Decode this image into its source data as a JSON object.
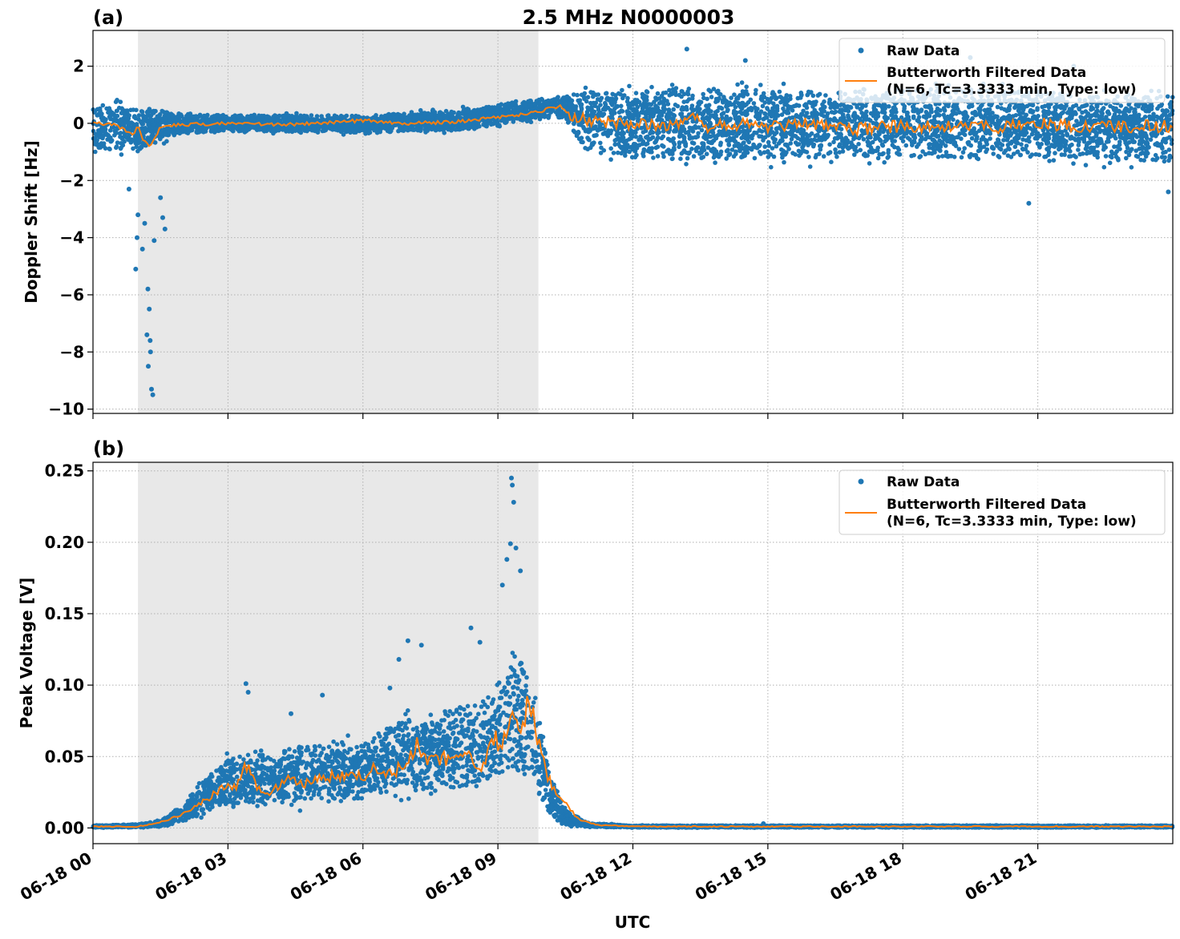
{
  "title": "2.5 MHz N0000003",
  "colors": {
    "raw": "#1f77b4",
    "filtered": "#ff7f0e",
    "shade": "#e8e8e8",
    "grid": "#b0b0b0"
  },
  "xaxis": {
    "label": "UTC",
    "range_hours": [
      0,
      24
    ],
    "tick_hours": [
      0,
      3,
      6,
      9,
      12,
      15,
      18,
      21
    ],
    "tick_labels": [
      "06-18 00",
      "06-18 03",
      "06-18 06",
      "06-18 09",
      "06-18 12",
      "06-18 15",
      "06-18 18",
      "06-18 21"
    ]
  },
  "legend": {
    "raw": "Raw Data",
    "filtered_line1": "Butterworth Filtered Data",
    "filtered_line2": "(N=6, Tc=3.3333 min, Type: low)"
  },
  "chart_data": [
    {
      "type": "scatter",
      "panel": "(a)",
      "title": "2.5 MHz N0000003",
      "xlabel": "UTC",
      "ylabel": "Doppler Shift [Hz]",
      "ylim": [
        -10.15,
        3.25
      ],
      "yticks": [
        2,
        0,
        -2,
        -4,
        -6,
        -8,
        -10
      ],
      "ytick_labels": [
        "2",
        "0",
        "−2",
        "−4",
        "−6",
        "−8",
        "−10"
      ],
      "grid": true,
      "legend_position": "top-right",
      "shaded_region_hours": [
        1.0,
        9.9
      ],
      "series": [
        {
          "name": "Raw Data",
          "style": "points",
          "envelope": {
            "x": [
              0,
              1,
              2,
              3,
              4,
              5,
              6,
              7,
              8,
              9,
              10,
              10.5,
              11,
              12,
              13,
              14,
              15,
              16,
              17,
              18,
              19,
              20,
              21,
              22,
              23,
              24
            ],
            "upper": [
              1.0,
              0.8,
              0.5,
              0.4,
              0.4,
              0.4,
              0.4,
              0.5,
              0.6,
              0.8,
              1.0,
              1.1,
              1.6,
              1.7,
              1.8,
              1.7,
              1.6,
              1.6,
              1.6,
              1.7,
              1.7,
              1.7,
              1.6,
              1.5,
              1.5,
              1.5
            ],
            "lower": [
              -1.2,
              -1.3,
              -0.5,
              -0.4,
              -0.4,
              -0.4,
              -0.5,
              -0.4,
              -0.4,
              -0.2,
              0.1,
              0.0,
              -1.5,
              -1.7,
              -1.8,
              -1.8,
              -1.7,
              -1.7,
              -1.7,
              -1.7,
              -1.7,
              -1.7,
              -1.7,
              -1.7,
              -1.8,
              -1.8
            ]
          },
          "outliers": [
            {
              "x": 0.95,
              "y": -5.1
            },
            {
              "x": 0.98,
              "y": -4.0
            },
            {
              "x": 1.0,
              "y": -3.2
            },
            {
              "x": 1.1,
              "y": -4.4
            },
            {
              "x": 1.15,
              "y": -3.5
            },
            {
              "x": 1.22,
              "y": -5.8
            },
            {
              "x": 1.25,
              "y": -6.5
            },
            {
              "x": 1.2,
              "y": -7.4
            },
            {
              "x": 1.28,
              "y": -8.0
            },
            {
              "x": 1.23,
              "y": -8.5
            },
            {
              "x": 1.3,
              "y": -9.3
            },
            {
              "x": 1.33,
              "y": -9.5
            },
            {
              "x": 1.27,
              "y": -7.6
            },
            {
              "x": 1.36,
              "y": -4.1
            },
            {
              "x": 1.5,
              "y": -2.6
            },
            {
              "x": 1.55,
              "y": -3.3
            },
            {
              "x": 1.6,
              "y": -3.7
            },
            {
              "x": 0.8,
              "y": -2.3
            },
            {
              "x": 13.2,
              "y": 2.6
            },
            {
              "x": 14.5,
              "y": 2.2
            },
            {
              "x": 19.5,
              "y": 2.3
            },
            {
              "x": 21.8,
              "y": 2.0
            },
            {
              "x": 20.8,
              "y": -2.8
            },
            {
              "x": 23.9,
              "y": -2.4
            }
          ]
        },
        {
          "name": "Butterworth Filtered Data",
          "style": "line",
          "x": [
            0,
            0.5,
            0.9,
            1.0,
            1.1,
            1.3,
            1.5,
            2,
            3,
            4,
            5,
            6,
            7,
            8,
            9,
            9.5,
            10,
            10.4,
            10.6,
            11,
            12,
            13,
            13.5,
            13.7,
            14,
            15,
            16,
            17,
            18,
            19,
            20,
            21,
            22,
            23,
            24
          ],
          "y": [
            0.0,
            -0.05,
            -0.4,
            -0.1,
            -0.6,
            -0.8,
            -0.1,
            -0.05,
            0.0,
            -0.05,
            0.0,
            0.1,
            0.0,
            0.05,
            0.2,
            0.3,
            0.45,
            0.6,
            0.3,
            0.1,
            0.0,
            -0.05,
            0.3,
            -0.4,
            0.0,
            -0.1,
            0.0,
            -0.2,
            -0.1,
            -0.1,
            -0.15,
            0.0,
            -0.1,
            -0.1,
            -0.1
          ]
        }
      ]
    },
    {
      "type": "scatter",
      "panel": "(b)",
      "title": "",
      "xlabel": "UTC",
      "ylabel": "Peak Voltage [V]",
      "ylim": [
        -0.011,
        0.256
      ],
      "yticks": [
        0.25,
        0.2,
        0.15,
        0.1,
        0.05,
        0.0
      ],
      "ytick_labels": [
        "0.25",
        "0.20",
        "0.15",
        "0.10",
        "0.05",
        "0.00"
      ],
      "grid": true,
      "legend_position": "top-right",
      "shaded_region_hours": [
        1.0,
        9.9
      ],
      "series": [
        {
          "name": "Raw Data",
          "style": "points",
          "envelope": {
            "x": [
              0,
              1,
              1.5,
              2,
              2.5,
              3,
              3.5,
              4,
              4.5,
              5,
              5.5,
              6,
              6.5,
              7,
              7.5,
              8,
              8.5,
              9,
              9.3,
              9.6,
              9.9,
              10.2,
              10.5,
              11,
              12,
              24
            ],
            "upper": [
              0.002,
              0.003,
              0.006,
              0.018,
              0.04,
              0.055,
              0.06,
              0.058,
              0.065,
              0.066,
              0.068,
              0.07,
              0.08,
              0.09,
              0.085,
              0.095,
              0.1,
              0.115,
              0.145,
              0.13,
              0.09,
              0.04,
              0.015,
              0.004,
              0.002,
              0.002
            ],
            "lower": [
              0.0,
              0.0,
              0.0,
              0.002,
              0.006,
              0.01,
              0.01,
              0.01,
              0.011,
              0.012,
              0.012,
              0.012,
              0.014,
              0.015,
              0.014,
              0.016,
              0.018,
              0.02,
              0.025,
              0.02,
              0.01,
              0.003,
              0.0,
              0.0,
              0.0,
              0.0
            ]
          },
          "outliers": [
            {
              "x": 3.4,
              "y": 0.101
            },
            {
              "x": 3.45,
              "y": 0.095
            },
            {
              "x": 7.0,
              "y": 0.131
            },
            {
              "x": 7.3,
              "y": 0.128
            },
            {
              "x": 6.8,
              "y": 0.118
            },
            {
              "x": 8.6,
              "y": 0.13
            },
            {
              "x": 8.4,
              "y": 0.14
            },
            {
              "x": 9.3,
              "y": 0.245
            },
            {
              "x": 9.32,
              "y": 0.24
            },
            {
              "x": 9.35,
              "y": 0.228
            },
            {
              "x": 9.28,
              "y": 0.199
            },
            {
              "x": 9.4,
              "y": 0.196
            },
            {
              "x": 9.2,
              "y": 0.188
            },
            {
              "x": 9.5,
              "y": 0.18
            },
            {
              "x": 9.1,
              "y": 0.17
            },
            {
              "x": 5.1,
              "y": 0.093
            },
            {
              "x": 4.4,
              "y": 0.08
            },
            {
              "x": 6.6,
              "y": 0.098
            },
            {
              "x": 14.9,
              "y": 0.003
            }
          ]
        },
        {
          "name": "Butterworth Filtered Data",
          "style": "line",
          "x": [
            0,
            1,
            1.5,
            2,
            2.5,
            3,
            3.2,
            3.4,
            3.6,
            4,
            4.3,
            4.6,
            5,
            5.5,
            6,
            6.3,
            6.6,
            7,
            7.2,
            7.4,
            7.8,
            8,
            8.3,
            8.6,
            8.9,
            9.1,
            9.3,
            9.5,
            9.7,
            9.9,
            10.1,
            10.4,
            10.8,
            11.2,
            12,
            24
          ],
          "y": [
            0.001,
            0.001,
            0.004,
            0.01,
            0.02,
            0.03,
            0.028,
            0.045,
            0.03,
            0.025,
            0.035,
            0.03,
            0.035,
            0.037,
            0.035,
            0.042,
            0.038,
            0.045,
            0.058,
            0.045,
            0.05,
            0.045,
            0.055,
            0.04,
            0.065,
            0.055,
            0.08,
            0.06,
            0.095,
            0.06,
            0.035,
            0.02,
            0.006,
            0.002,
            0.001,
            0.001
          ]
        }
      ]
    }
  ]
}
